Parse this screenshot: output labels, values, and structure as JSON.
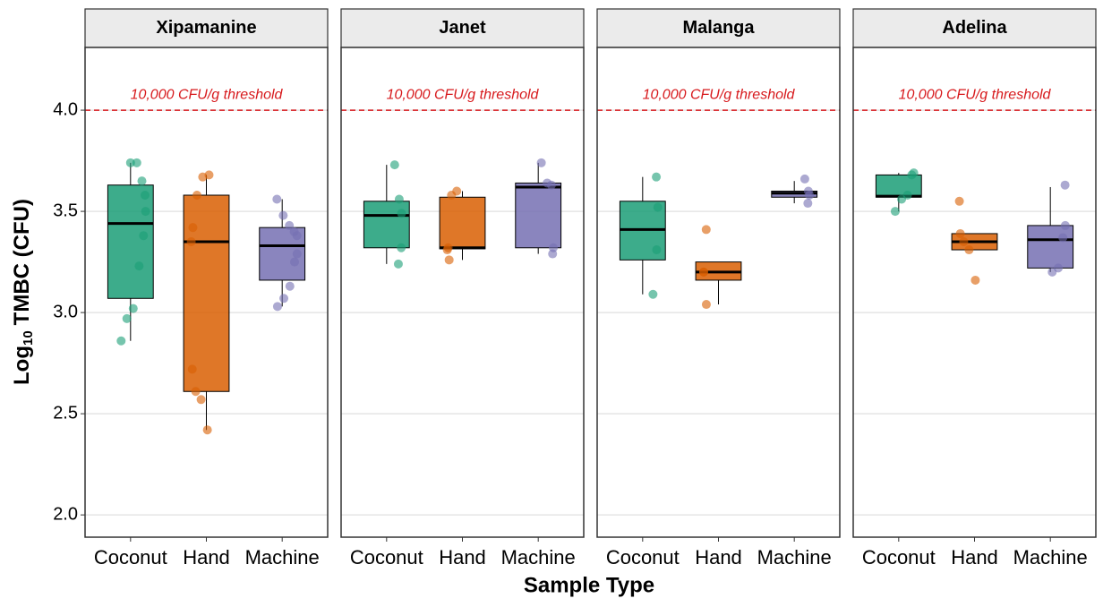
{
  "chart_data": {
    "type": "boxplot",
    "x_label": "Sample Type",
    "y_label": [
      "Log",
      "10",
      "TMBC (CFU)"
    ],
    "ylim": [
      1.89,
      4.31
    ],
    "yticks": [
      {
        "value": 2,
        "label": "2.0"
      },
      2.5,
      {
        "value": 3,
        "label": "3.0"
      },
      3.5,
      {
        "value": 4,
        "label": "4.0"
      }
    ],
    "grid": true,
    "threshold": {
      "value": 4,
      "label": "10,000 CFU/g threshold",
      "color": "#d7191c"
    },
    "categories": [
      "Coconut",
      "Hand",
      "Machine"
    ],
    "colors": [
      "#1b9e77",
      "#d95f02",
      "#7570b3"
    ],
    "panels": [
      {
        "title": "Xipamanine",
        "boxes": [
          {
            "whislo": 2.86,
            "q1": 3.07,
            "med": 3.44,
            "q3": 3.63,
            "whishi": 3.74
          },
          {
            "whislo": 2.42,
            "q1": 2.61,
            "med": 3.35,
            "q3": 3.58,
            "whishi": 3.68
          },
          {
            "whislo": 3.03,
            "q1": 3.16,
            "med": 3.33,
            "q3": 3.42,
            "whishi": 3.56
          }
        ],
        "points": [
          [
            3.74,
            3.74,
            3.65,
            3.58,
            3.5,
            3.38,
            3.23,
            3.02,
            2.97,
            2.86
          ],
          [
            3.68,
            3.67,
            3.58,
            3.42,
            3.35,
            2.72,
            2.61,
            2.57,
            2.42
          ],
          [
            3.56,
            3.48,
            3.43,
            3.4,
            3.38,
            3.29,
            3.25,
            3.13,
            3.07,
            3.03
          ]
        ]
      },
      {
        "title": "Janet",
        "boxes": [
          {
            "whislo": 3.24,
            "q1": 3.32,
            "med": 3.48,
            "q3": 3.55,
            "whishi": 3.73
          },
          {
            "whislo": 3.26,
            "q1": 3.315,
            "med": 3.32,
            "q3": 3.57,
            "whishi": 3.6
          },
          {
            "whislo": 3.29,
            "q1": 3.32,
            "med": 3.62,
            "q3": 3.64,
            "whishi": 3.74
          }
        ],
        "points": [
          [
            3.73,
            3.56,
            3.49,
            3.32,
            3.24
          ],
          [
            3.6,
            3.58,
            3.32,
            3.31,
            3.26
          ],
          [
            3.74,
            3.64,
            3.63,
            3.32,
            3.29
          ]
        ]
      },
      {
        "title": "Malanga",
        "boxes": [
          {
            "whislo": 3.09,
            "q1": 3.26,
            "med": 3.41,
            "q3": 3.55,
            "whishi": 3.67
          },
          {
            "whislo": 3.04,
            "q1": 3.16,
            "med": 3.2,
            "q3": 3.25,
            "whishi": 3.25
          },
          {
            "whislo": 3.54,
            "q1": 3.57,
            "med": 3.59,
            "q3": 3.6,
            "whishi": 3.65
          }
        ],
        "points": [
          [
            3.67,
            3.52,
            3.31,
            3.09
          ],
          [
            3.41,
            3.2,
            3.2,
            3.04
          ],
          [
            3.66,
            3.6,
            3.58,
            3.54
          ]
        ]
      },
      {
        "title": "Adelina",
        "boxes": [
          {
            "whislo": 3.5,
            "q1": 3.57,
            "med": 3.575,
            "q3": 3.68,
            "whishi": 3.69
          },
          {
            "whislo": 3.31,
            "q1": 3.31,
            "med": 3.35,
            "q3": 3.39,
            "whishi": 3.39
          },
          {
            "whislo": 3.2,
            "q1": 3.22,
            "med": 3.36,
            "q3": 3.43,
            "whishi": 3.62
          }
        ],
        "points": [
          [
            3.69,
            3.68,
            3.58,
            3.56,
            3.5
          ],
          [
            3.55,
            3.39,
            3.35,
            3.31,
            3.16
          ],
          [
            3.63,
            3.43,
            3.37,
            3.22,
            3.2
          ]
        ]
      }
    ]
  }
}
